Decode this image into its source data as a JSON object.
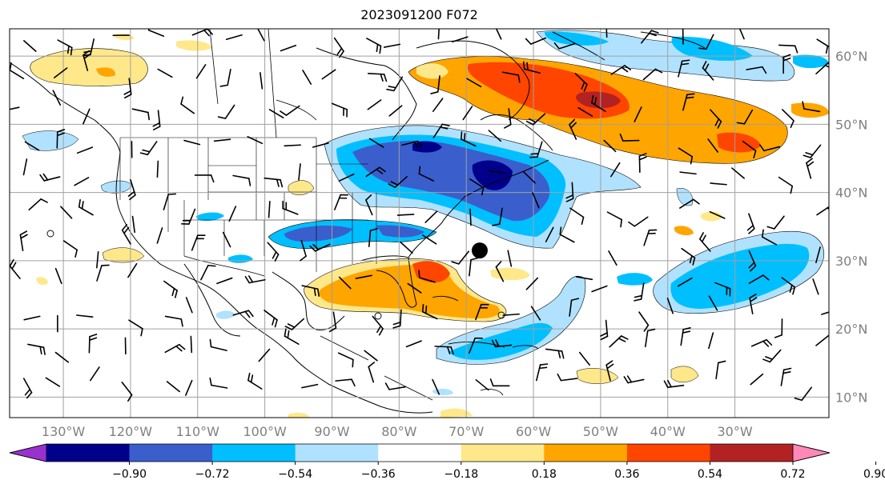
{
  "title": "2023091200 F072",
  "map": {
    "lon_range": [
      -138,
      -16
    ],
    "lat_range": [
      7,
      64
    ],
    "lon_ticks": [
      {
        "value": -130,
        "label": "130°W"
      },
      {
        "value": -120,
        "label": "120°W"
      },
      {
        "value": -110,
        "label": "110°W"
      },
      {
        "value": -100,
        "label": "100°W"
      },
      {
        "value": -90,
        "label": "90°W"
      },
      {
        "value": -80,
        "label": "80°W"
      },
      {
        "value": -70,
        "label": "70°W"
      },
      {
        "value": -60,
        "label": "60°W"
      },
      {
        "value": -50,
        "label": "50°W"
      },
      {
        "value": -40,
        "label": "40°W"
      },
      {
        "value": -30,
        "label": "30°W"
      }
    ],
    "lat_ticks": [
      {
        "value": 60,
        "label": "60°N"
      },
      {
        "value": 50,
        "label": "50°N"
      },
      {
        "value": 40,
        "label": "40°N"
      },
      {
        "value": 30,
        "label": "30°N"
      },
      {
        "value": 20,
        "label": "20°N"
      },
      {
        "value": 10,
        "label": "10°N"
      }
    ],
    "grid": true,
    "storm_marker": {
      "lon": -68,
      "lat": 31.5
    }
  },
  "colorbar": {
    "levels": [
      "−0.90",
      "−0.72",
      "−0.54",
      "−0.36",
      "−0.18",
      "0.18",
      "0.36",
      "0.54",
      "0.72",
      "0.90"
    ],
    "colors": [
      "#9932cc",
      "#00008b",
      "#3a5fcd",
      "#00bfff",
      "#b0e2ff",
      "#ffffff",
      "#ffe88a",
      "#ffa500",
      "#ff4500",
      "#b22222",
      "#ff88b8"
    ],
    "extend": "both"
  }
}
